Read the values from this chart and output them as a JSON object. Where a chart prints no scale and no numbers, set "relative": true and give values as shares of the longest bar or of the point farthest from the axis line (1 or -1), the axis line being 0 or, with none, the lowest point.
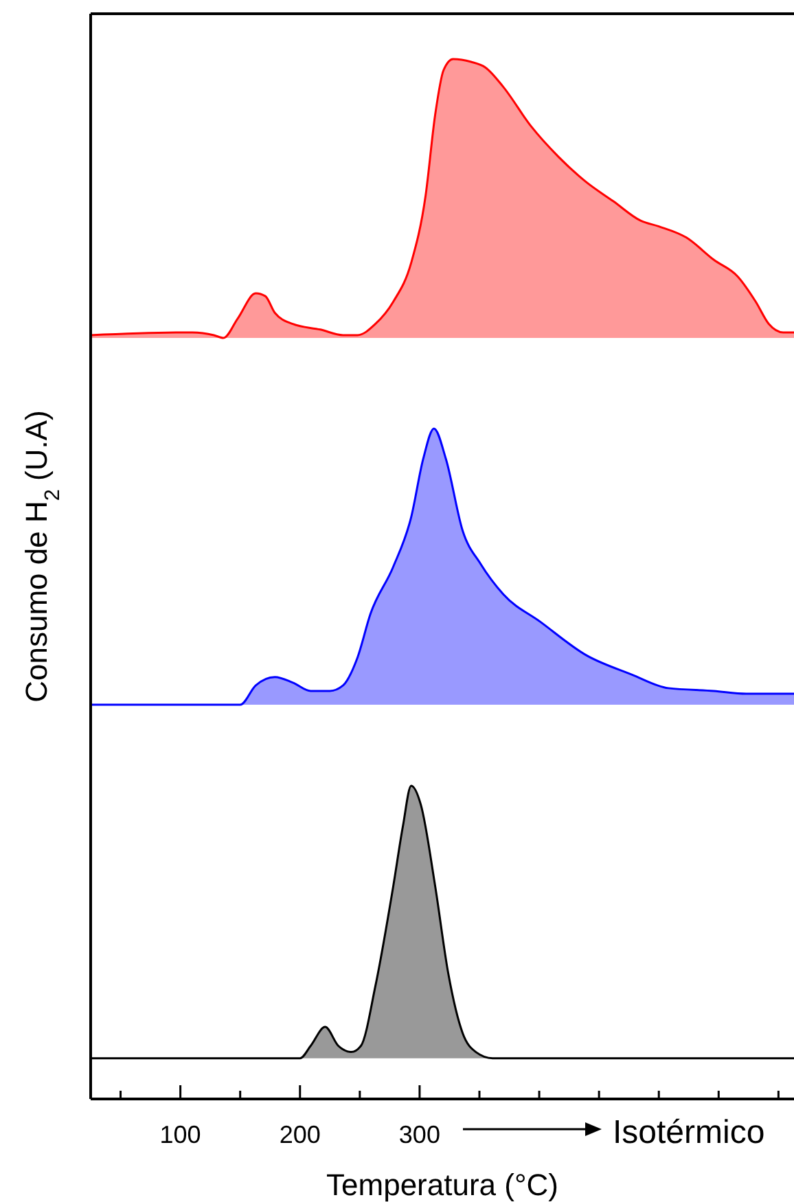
{
  "chart_data": [
    {
      "type": "area",
      "relative": true,
      "tick_labels": false,
      "xlim": [
        25,
        613
      ],
      "series": [
        {
          "color": "#ff0000",
          "x": [
            25,
            110,
            128,
            136,
            148,
            163,
            171,
            179,
            194,
            217,
            236,
            248,
            263,
            278,
            293,
            305,
            313,
            320,
            328,
            343,
            355,
            370,
            393,
            416,
            439,
            462,
            485,
            500,
            523,
            546,
            566,
            581,
            592,
            604,
            613
          ],
          "values": [
            0.01,
            0.02,
            0.01,
            0,
            0.07,
            0.16,
            0.15,
            0.09,
            0.05,
            0.03,
            0.01,
            0.01,
            0.05,
            0.13,
            0.27,
            0.51,
            0.8,
            0.96,
            1,
            0.99,
            0.97,
            0.9,
            0.76,
            0.65,
            0.56,
            0.49,
            0.42,
            0.4,
            0.36,
            0.28,
            0.22,
            0.13,
            0.05,
            0.02,
            0.02
          ]
        }
      ]
    },
    {
      "type": "area",
      "relative": true,
      "tick_labels": false,
      "ylabel": "Consumo de H$_{2}$ (U.A)",
      "xlim": [
        25,
        613
      ],
      "series": [
        {
          "color": "#0000ff",
          "x": [
            25,
            150,
            163,
            179,
            194,
            209,
            225,
            236,
            248,
            259,
            278,
            293,
            303,
            312,
            322,
            336,
            351,
            370,
            401,
            439,
            477,
            508,
            546,
            573,
            613
          ],
          "values": [
            0,
            0,
            0.07,
            0.1,
            0.08,
            0.05,
            0.05,
            0.07,
            0.17,
            0.33,
            0.5,
            0.68,
            0.89,
            1,
            0.89,
            0.63,
            0.51,
            0.4,
            0.3,
            0.18,
            0.11,
            0.06,
            0.05,
            0.04,
            0.04
          ]
        }
      ]
    },
    {
      "type": "area",
      "relative": true,
      "tick_labels": "x",
      "xlabel": "Temperatura (°C)",
      "annotations": [
        "Isotérmico"
      ],
      "xlim": [
        25,
        613
      ],
      "xticks": [
        {
          "value": 50,
          "label": null
        },
        100,
        {
          "value": 150,
          "label": null
        },
        200,
        {
          "value": 250,
          "label": null
        },
        300,
        {
          "value": 350,
          "label": null
        },
        {
          "value": 400,
          "label": null
        },
        {
          "value": 450,
          "label": null
        },
        {
          "value": 500,
          "label": null
        },
        {
          "value": 550,
          "label": null
        },
        {
          "value": 600,
          "label": null
        }
      ],
      "series": [
        {
          "color": "#000000",
          "x": [
            25,
            200,
            209,
            221,
            232,
            243,
            251,
            263,
            278,
            286,
            293,
            301,
            313,
            324,
            336,
            347,
            361,
            613
          ],
          "values": [
            0.13,
            0.13,
            0.17,
            0.23,
            0.17,
            0.15,
            0.17,
            0.36,
            0.68,
            0.87,
            1,
            0.94,
            0.68,
            0.4,
            0.21,
            0.15,
            0.13,
            0.13
          ]
        }
      ]
    }
  ]
}
